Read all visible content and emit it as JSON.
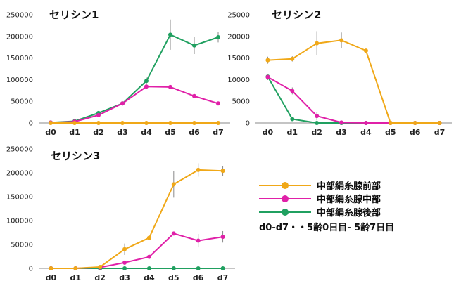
{
  "colors": {
    "front": "#f0a818",
    "middle": "#e020a8",
    "back": "#20a060",
    "axis": "#888888",
    "errorbar": "#888888"
  },
  "legend": [
    {
      "name": "中部絹糸腺前部",
      "color": "#f0a818"
    },
    {
      "name": "中部絹糸腺中部",
      "color": "#e020a8"
    },
    {
      "name": "中部絹糸腺後部",
      "color": "#20a060"
    }
  ],
  "note": "d0-d7・・5齢0日目- 5齢7日目",
  "chart_data": [
    {
      "type": "line",
      "title": "セリシン1",
      "categories": [
        "d0",
        "d1",
        "d2",
        "d3",
        "d4",
        "d5",
        "d6",
        "d7"
      ],
      "ylim": [
        0,
        250000
      ],
      "yticks": [
        "0",
        "50000",
        "100000",
        "150000",
        "200000",
        "250000"
      ],
      "series": [
        {
          "name": "中部絹糸腺前部",
          "values": [
            0,
            0,
            0,
            0,
            0,
            0,
            0,
            0
          ]
        },
        {
          "name": "中部絹糸腺中部",
          "values": [
            1000,
            3000,
            18000,
            45000,
            84000,
            83000,
            62000,
            45000
          ]
        },
        {
          "name": "中部絹糸腺後部",
          "values": [
            1000,
            4000,
            23000,
            45000,
            97000,
            204000,
            179000,
            198000
          ]
        }
      ],
      "errors": [
        [
          0,
          0,
          0,
          0,
          0,
          0,
          0,
          0
        ],
        [
          0,
          1000,
          2000,
          2000,
          5000,
          4000,
          3000,
          2000
        ],
        [
          0,
          1000,
          3000,
          3000,
          8000,
          35000,
          20000,
          12000
        ]
      ]
    },
    {
      "type": "line",
      "title": "セリシン2",
      "categories": [
        "d0",
        "d1",
        "d2",
        "d3",
        "d4",
        "d5",
        "d6",
        "d7"
      ],
      "ylim": [
        0,
        25000
      ],
      "yticks": [
        "0",
        "5000",
        "10000",
        "15000",
        "20000",
        "25000"
      ],
      "series": [
        {
          "name": "中部絹糸腺前部",
          "values": [
            14500,
            14800,
            18400,
            19100,
            16700,
            0,
            0,
            0
          ]
        },
        {
          "name": "中部絹糸腺中部",
          "values": [
            10600,
            7400,
            1600,
            100,
            0,
            0,
            0,
            0
          ]
        },
        {
          "name": "中部絹糸腺後部",
          "values": [
            10700,
            900,
            0,
            0,
            0,
            0,
            0,
            0
          ]
        }
      ],
      "errors": [
        [
          800,
          600,
          2800,
          1800,
          400,
          0,
          0,
          0
        ],
        [
          700,
          800,
          1000,
          100,
          0,
          0,
          0,
          0
        ],
        [
          600,
          100,
          0,
          0,
          0,
          0,
          0,
          0
        ]
      ]
    },
    {
      "type": "line",
      "title": "セリシン3",
      "categories": [
        "d0",
        "d1",
        "d2",
        "d3",
        "d4",
        "d5",
        "d6",
        "d7"
      ],
      "ylim": [
        0,
        250000
      ],
      "yticks": [
        "0",
        "50000",
        "100000",
        "150000",
        "200000",
        "250000"
      ],
      "series": [
        {
          "name": "中部絹糸腺前部",
          "values": [
            0,
            0,
            3000,
            40000,
            64000,
            176000,
            206000,
            204000
          ]
        },
        {
          "name": "中部絹糸腺中部",
          "values": [
            0,
            0,
            2000,
            12000,
            24000,
            73000,
            58000,
            66000
          ]
        },
        {
          "name": "中部絹糸腺後部",
          "values": [
            0,
            0,
            0,
            0,
            0,
            0,
            0,
            0
          ]
        }
      ],
      "errors": [
        [
          0,
          0,
          1000,
          12000,
          2000,
          28000,
          14000,
          10000
        ],
        [
          0,
          0,
          1000,
          4000,
          2000,
          4000,
          14000,
          12000
        ],
        [
          0,
          0,
          0,
          0,
          0,
          0,
          0,
          0
        ]
      ]
    }
  ]
}
